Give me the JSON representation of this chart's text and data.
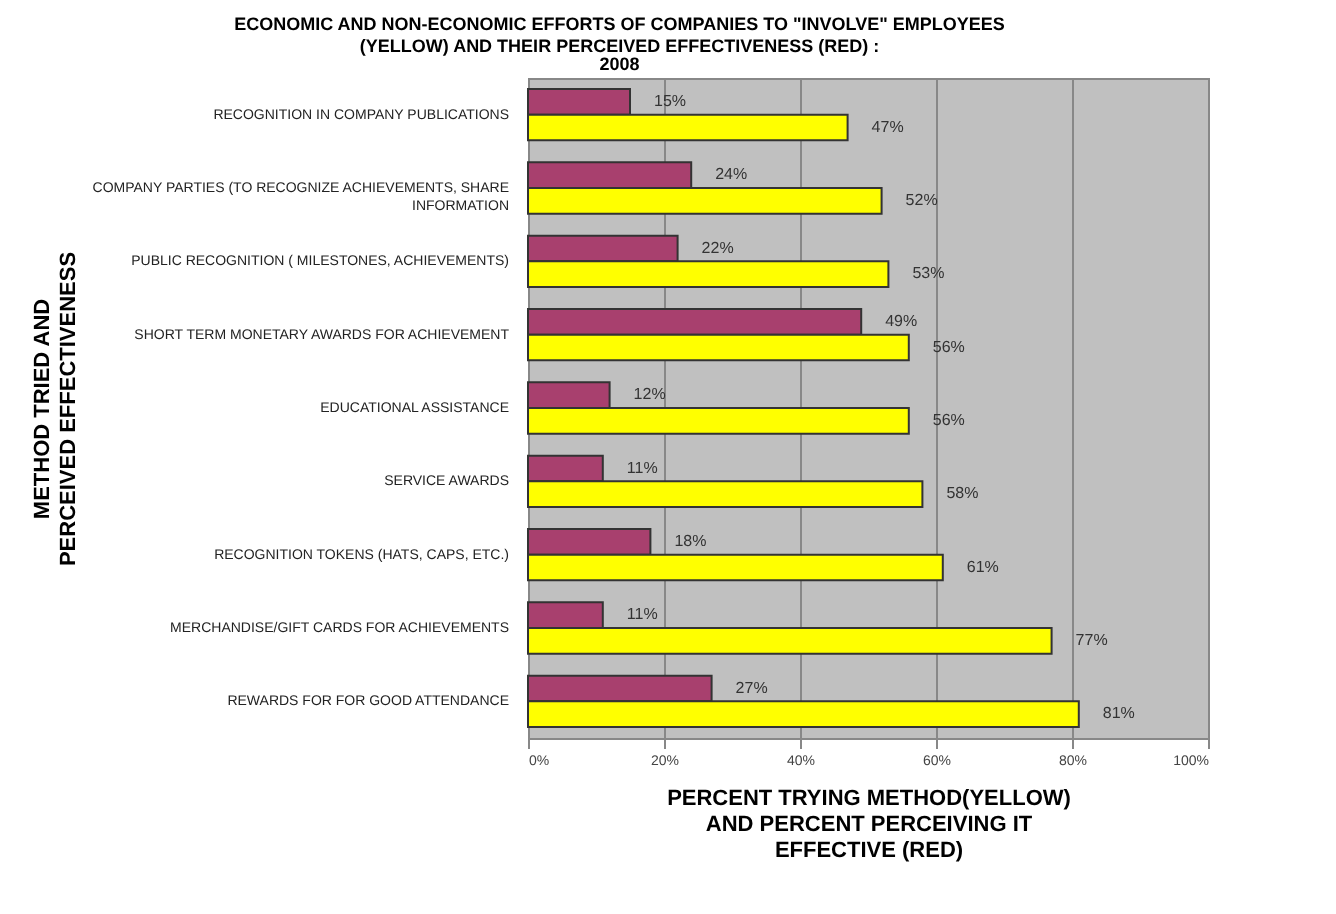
{
  "chart_data": {
    "type": "bar",
    "orientation": "horizontal",
    "title": "ECONOMIC AND NON-ECONOMIC EFFORTS OF COMPANIES TO \"INVOLVE\" EMPLOYEES (YELLOW) AND THEIR PERCEIVED EFFECTIVENESS (RED) :",
    "subtitle": "2008",
    "xlabel": "PERCENT TRYING METHOD(YELLOW) AND PERCENT PERCEIVING IT EFFECTIVE (RED)",
    "ylabel": "METHOD TRIED AND PERCEIVED EFFECTIVENESS",
    "categories": [
      "RECOGNITION IN COMPANY PUBLICATIONS",
      "COMPANY PARTIES (TO RECOGNIZE ACHIEVEMENTS, SHARE INFORMATION",
      "PUBLIC RECOGNITION ( MILESTONES, ACHIEVEMENTS)",
      "SHORT TERM MONETARY AWARDS FOR ACHIEVEMENT",
      "EDUCATIONAL ASSISTANCE",
      "SERVICE AWARDS",
      "RECOGNITION TOKENS (HATS, CAPS, ETC.)",
      "MERCHANDISE/GIFT CARDS FOR ACHIEVEMENTS",
      "REWARDS FOR FOR GOOD ATTENDANCE"
    ],
    "series": [
      {
        "color": "#a8406e",
        "values": [
          15,
          24,
          22,
          49,
          12,
          11,
          18,
          11,
          27
        ],
        "value_labels": [
          "15%",
          "24%",
          "22%",
          "49%",
          "12%",
          "11%",
          "18%",
          "11%",
          "27%"
        ]
      },
      {
        "color": "#ffff00",
        "values": [
          47,
          52,
          53,
          56,
          56,
          58,
          61,
          77,
          81
        ],
        "value_labels": [
          "47%",
          "52%",
          "53%",
          "56%",
          "56%",
          "58%",
          "61%",
          "77%",
          "81%"
        ]
      }
    ],
    "xlim": [
      0,
      100
    ],
    "xticks": [
      {
        "value": 0,
        "label": "0%"
      },
      {
        "value": 20,
        "label": "20%"
      },
      {
        "value": 40,
        "label": "40%"
      },
      {
        "value": 60,
        "label": "60%"
      },
      {
        "value": 80,
        "label": "80%"
      },
      {
        "value": 100,
        "label": "100%"
      }
    ],
    "grid": "x"
  }
}
